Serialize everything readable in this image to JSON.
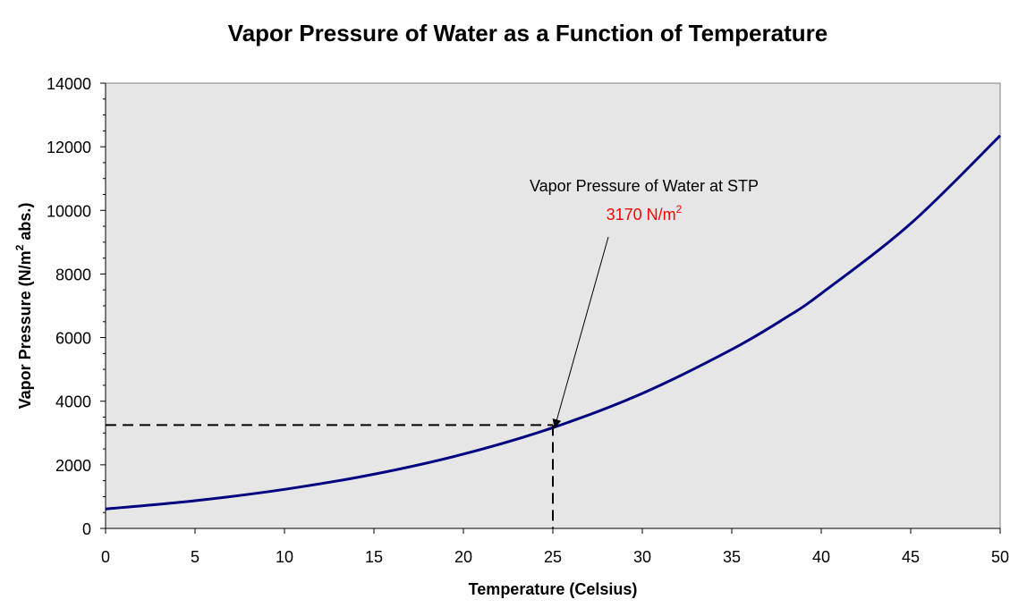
{
  "chart_data": {
    "type": "line",
    "title": "Vapor Pressure of Water as a Function of Temperature",
    "xlabel": "Temperature (Celsius)",
    "ylabel": {
      "before": "Vapor Pressure (N/m",
      "sup": "2",
      "after": " abs.)"
    },
    "xlim": [
      0,
      50
    ],
    "ylim": [
      0,
      14000
    ],
    "x_ticks": [
      0,
      5,
      10,
      15,
      20,
      25,
      30,
      35,
      40,
      45,
      50
    ],
    "y_ticks": [
      0,
      2000,
      4000,
      6000,
      8000,
      10000,
      12000,
      14000
    ],
    "grid": false,
    "plot_background": "#e6e6e6",
    "series": [
      {
        "color": "#000080",
        "x": [
          0,
          5,
          10,
          15,
          20,
          25,
          30,
          35,
          38,
          40,
          45,
          50
        ],
        "y": [
          611,
          872,
          1228,
          1705,
          2338,
          3169,
          4246,
          5628,
          6620,
          7385,
          9585,
          12350
        ]
      }
    ],
    "annotation": {
      "text": "Vapor Pressure of Water at STP",
      "value": {
        "before": "3170 N/m",
        "sup": "2"
      },
      "value_color": "#ff0000",
      "point": {
        "x": 25,
        "y": 3250
      },
      "dashed_to_axes": true
    }
  }
}
